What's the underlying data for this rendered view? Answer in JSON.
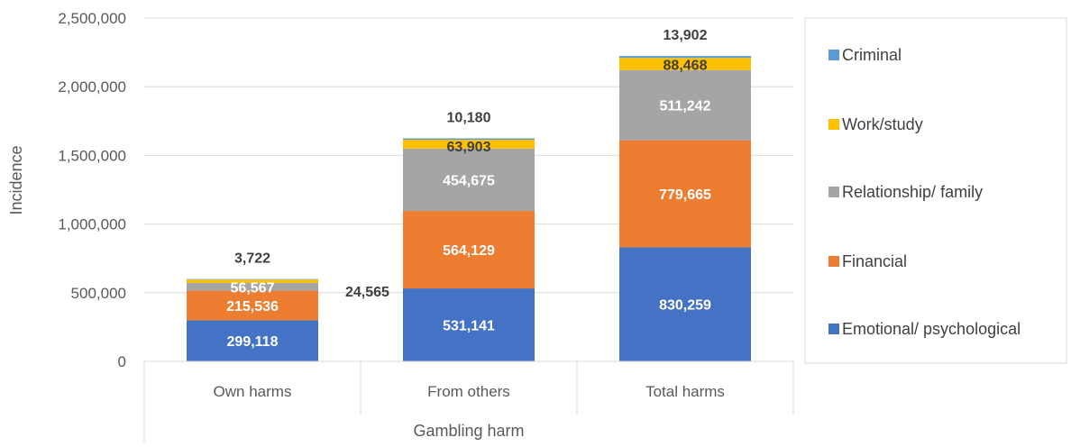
{
  "chart_data": {
    "type": "bar",
    "stacked": true,
    "title": "",
    "xlabel": "Gambling harm",
    "ylabel": "Incidence",
    "ylim": [
      0,
      2500000
    ],
    "yticks": [
      "0",
      "500,000",
      "1,000,000",
      "1,500,000",
      "2,000,000",
      "2,500,000"
    ],
    "grid": true,
    "legend_position": "right",
    "categories": [
      "Own harms",
      "From others",
      "Total harms"
    ],
    "series": [
      {
        "name": "Emotional/ psychological",
        "color": "#4472C4",
        "label_color": "#FFFFFF",
        "values": [
          299118,
          531141,
          830259
        ],
        "labels": [
          "299,118",
          "531,141",
          "830,259"
        ]
      },
      {
        "name": "Financial",
        "color": "#ED7D31",
        "label_color": "#FFFFFF",
        "values": [
          215536,
          564129,
          779665
        ],
        "labels": [
          "215,536",
          "564,129",
          "779,665"
        ]
      },
      {
        "name": "Relationship/ family",
        "color": "#A5A5A5",
        "label_color": "#FFFFFF",
        "values": [
          56567,
          454675,
          511242
        ],
        "labels": [
          "56,567",
          "454,675",
          "511,242"
        ]
      },
      {
        "name": "Work/study",
        "color": "#FFC000",
        "label_color": "#404040",
        "values": [
          24565,
          63903,
          88468
        ],
        "labels": [
          "24,565",
          "63,903",
          "88,468"
        ]
      },
      {
        "name": "Criminal",
        "color": "#5B9BD5",
        "label_color": "#404040",
        "values": [
          3722,
          10180,
          13902
        ],
        "labels": [
          "3,722",
          "10,180",
          "13,902"
        ]
      }
    ]
  }
}
